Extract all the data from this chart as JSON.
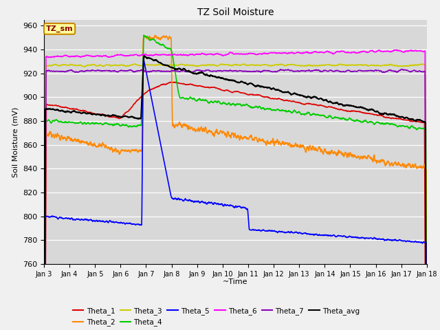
{
  "title": "TZ Soil Moisture",
  "xlabel": "~Time",
  "ylabel": "Soil Moisture (mV)",
  "ylim": [
    760,
    965
  ],
  "yticks": [
    760,
    780,
    800,
    820,
    840,
    860,
    880,
    900,
    920,
    940,
    960
  ],
  "bg_color": "#d8d8d8",
  "fig_color": "#f0f0f0",
  "annotation_label": "TZ_sm",
  "annotation_box_color": "#ffff99",
  "annotation_box_edge": "#cc8800",
  "series_colors": {
    "Theta_1": "#dd0000",
    "Theta_2": "#ff8800",
    "Theta_3": "#cccc00",
    "Theta_4": "#00cc00",
    "Theta_5": "#0000ff",
    "Theta_6": "#ff00ff",
    "Theta_7": "#8800bb",
    "Theta_avg": "#000000"
  },
  "legend_order": [
    "Theta_1",
    "Theta_2",
    "Theta_3",
    "Theta_4",
    "Theta_5",
    "Theta_6",
    "Theta_7",
    "Theta_avg"
  ]
}
